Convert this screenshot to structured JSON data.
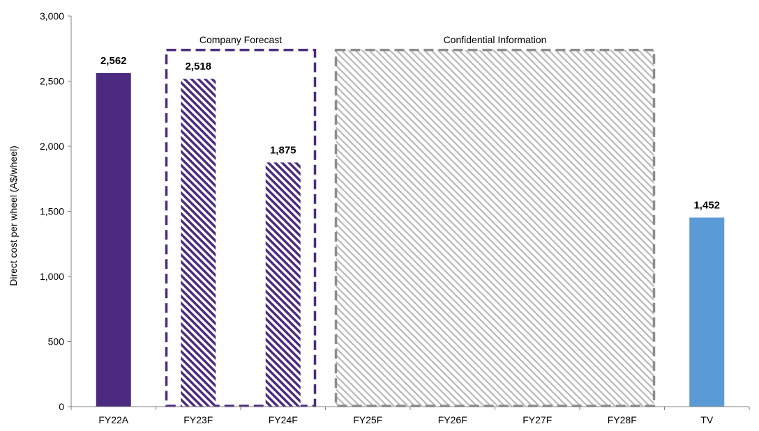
{
  "chart_data": {
    "type": "bar",
    "title": "",
    "xlabel": "",
    "ylabel": "Direct cost per wheel (A$/wheel)",
    "ylim": [
      0,
      3000
    ],
    "yticks": [
      0,
      500,
      1000,
      1500,
      2000,
      2500,
      3000
    ],
    "ytick_labels": [
      "0",
      "500",
      "1,000",
      "1,500",
      "2,000",
      "2,500",
      "3,000"
    ],
    "grid": false,
    "legend": "none",
    "categories": [
      "FY22A",
      "FY23F",
      "FY24F",
      "FY25F",
      "FY26F",
      "FY27F",
      "FY28F",
      "TV"
    ],
    "values": [
      2562,
      2518,
      1875,
      null,
      null,
      null,
      null,
      1452
    ],
    "value_labels": [
      "2,562",
      "2,518",
      "1,875",
      "",
      "",
      "",
      "",
      "1,452"
    ],
    "bar_styles": [
      "solid-purple",
      "hatched-purple",
      "hatched-purple",
      "none",
      "none",
      "none",
      "none",
      "solid-blue"
    ],
    "colors": {
      "purple": "#4b2a7f",
      "blue": "#5b9bd5",
      "gray": "#8c8c8c",
      "axis": "#808080"
    },
    "annotations": [
      {
        "text": "Company Forecast",
        "style": "dashed-purple-box",
        "categories": [
          "FY23F",
          "FY24F"
        ],
        "top_value": 2750
      },
      {
        "text": "Confidential Information",
        "style": "dashed-gray-hatched-box",
        "categories": [
          "FY25F",
          "FY26F",
          "FY27F",
          "FY28F"
        ],
        "top_value": 2750
      }
    ]
  }
}
